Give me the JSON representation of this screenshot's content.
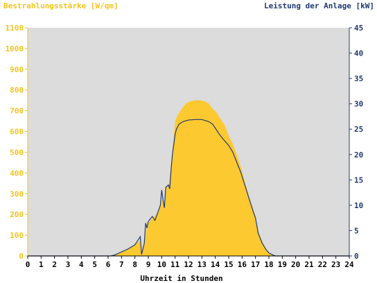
{
  "chart_data": {
    "type": "area",
    "left_axis": {
      "label": "Bestrahlungsstärke [W/qm]",
      "min": 0,
      "max": 1100,
      "ticks": [
        0,
        100,
        200,
        300,
        400,
        500,
        600,
        700,
        800,
        900,
        1000,
        1100
      ]
    },
    "right_axis": {
      "label": "Leistung der Anlage [kW]",
      "min": 0,
      "max": 45,
      "ticks": [
        0,
        5,
        10,
        15,
        20,
        25,
        30,
        35,
        40,
        45
      ]
    },
    "x_axis": {
      "label": "Uhrzeit in Stunden",
      "min": 0,
      "max": 24,
      "ticks": [
        0,
        1,
        2,
        3,
        4,
        5,
        6,
        7,
        8,
        9,
        10,
        11,
        12,
        13,
        14,
        15,
        16,
        17,
        18,
        19,
        20,
        21,
        22,
        23,
        24
      ]
    },
    "series": [
      {
        "name": "Bestrahlungsstärke",
        "axis": "left",
        "style": "area",
        "color": "#fdc930",
        "points": [
          [
            0,
            0
          ],
          [
            6.2,
            0
          ],
          [
            6.5,
            5
          ],
          [
            7,
            20
          ],
          [
            7.5,
            35
          ],
          [
            8,
            55
          ],
          [
            8.4,
            75
          ],
          [
            8.5,
            10
          ],
          [
            8.7,
            60
          ],
          [
            8.9,
            140
          ],
          [
            9,
            160
          ],
          [
            9.3,
            180
          ],
          [
            9.6,
            200
          ],
          [
            9.9,
            240
          ],
          [
            10.1,
            280
          ],
          [
            10.2,
            220
          ],
          [
            10.3,
            340
          ],
          [
            10.5,
            330
          ],
          [
            10.6,
            380
          ],
          [
            10.8,
            500
          ],
          [
            11,
            650
          ],
          [
            11.2,
            680
          ],
          [
            11.5,
            710
          ],
          [
            11.8,
            735
          ],
          [
            12.1,
            745
          ],
          [
            12.5,
            750
          ],
          [
            12.9,
            750
          ],
          [
            13.2,
            745
          ],
          [
            13.5,
            735
          ],
          [
            13.8,
            710
          ],
          [
            14.1,
            690
          ],
          [
            14.4,
            660
          ],
          [
            14.7,
            630
          ],
          [
            15,
            580
          ],
          [
            15.3,
            540
          ],
          [
            15.6,
            490
          ],
          [
            15.9,
            430
          ],
          [
            16.2,
            360
          ],
          [
            16.5,
            290
          ],
          [
            16.8,
            230
          ],
          [
            17,
            190
          ],
          [
            17.2,
            120
          ],
          [
            17.5,
            70
          ],
          [
            17.8,
            35
          ],
          [
            18,
            15
          ],
          [
            18.3,
            5
          ],
          [
            18.5,
            0
          ],
          [
            24,
            0
          ]
        ]
      },
      {
        "name": "Leistung",
        "axis": "right",
        "style": "line",
        "color": "#1f3a73",
        "points": [
          [
            0,
            0
          ],
          [
            6.2,
            0
          ],
          [
            6.5,
            0.2
          ],
          [
            7,
            0.8
          ],
          [
            7.5,
            1.4
          ],
          [
            8,
            2.2
          ],
          [
            8.4,
            3.8
          ],
          [
            8.5,
            0.3
          ],
          [
            8.7,
            2.5
          ],
          [
            8.8,
            6.5
          ],
          [
            8.9,
            5.5
          ],
          [
            9,
            6.8
          ],
          [
            9.3,
            7.8
          ],
          [
            9.5,
            7
          ],
          [
            9.7,
            8.5
          ],
          [
            9.9,
            10
          ],
          [
            10,
            13
          ],
          [
            10.1,
            11
          ],
          [
            10.2,
            9.5
          ],
          [
            10.3,
            13.5
          ],
          [
            10.5,
            14
          ],
          [
            10.6,
            13.2
          ],
          [
            10.7,
            17
          ],
          [
            10.8,
            20
          ],
          [
            11,
            24
          ],
          [
            11.1,
            25
          ],
          [
            11.3,
            26
          ],
          [
            11.6,
            26.5
          ],
          [
            12,
            26.8
          ],
          [
            12.5,
            26.9
          ],
          [
            13,
            26.9
          ],
          [
            13.5,
            26.5
          ],
          [
            13.8,
            26
          ],
          [
            14,
            25.2
          ],
          [
            14.3,
            24
          ],
          [
            14.6,
            23
          ],
          [
            15,
            21.8
          ],
          [
            15.3,
            20.5
          ],
          [
            15.6,
            18.5
          ],
          [
            15.9,
            16.5
          ],
          [
            16.2,
            14
          ],
          [
            16.5,
            11.5
          ],
          [
            16.8,
            9
          ],
          [
            17,
            7.5
          ],
          [
            17.2,
            4.5
          ],
          [
            17.5,
            2.5
          ],
          [
            17.8,
            1.2
          ],
          [
            18,
            0.6
          ],
          [
            18.3,
            0.2
          ],
          [
            18.5,
            0
          ],
          [
            24,
            0
          ]
        ]
      }
    ],
    "grid": false,
    "plot_background": "#dcdcdc"
  }
}
